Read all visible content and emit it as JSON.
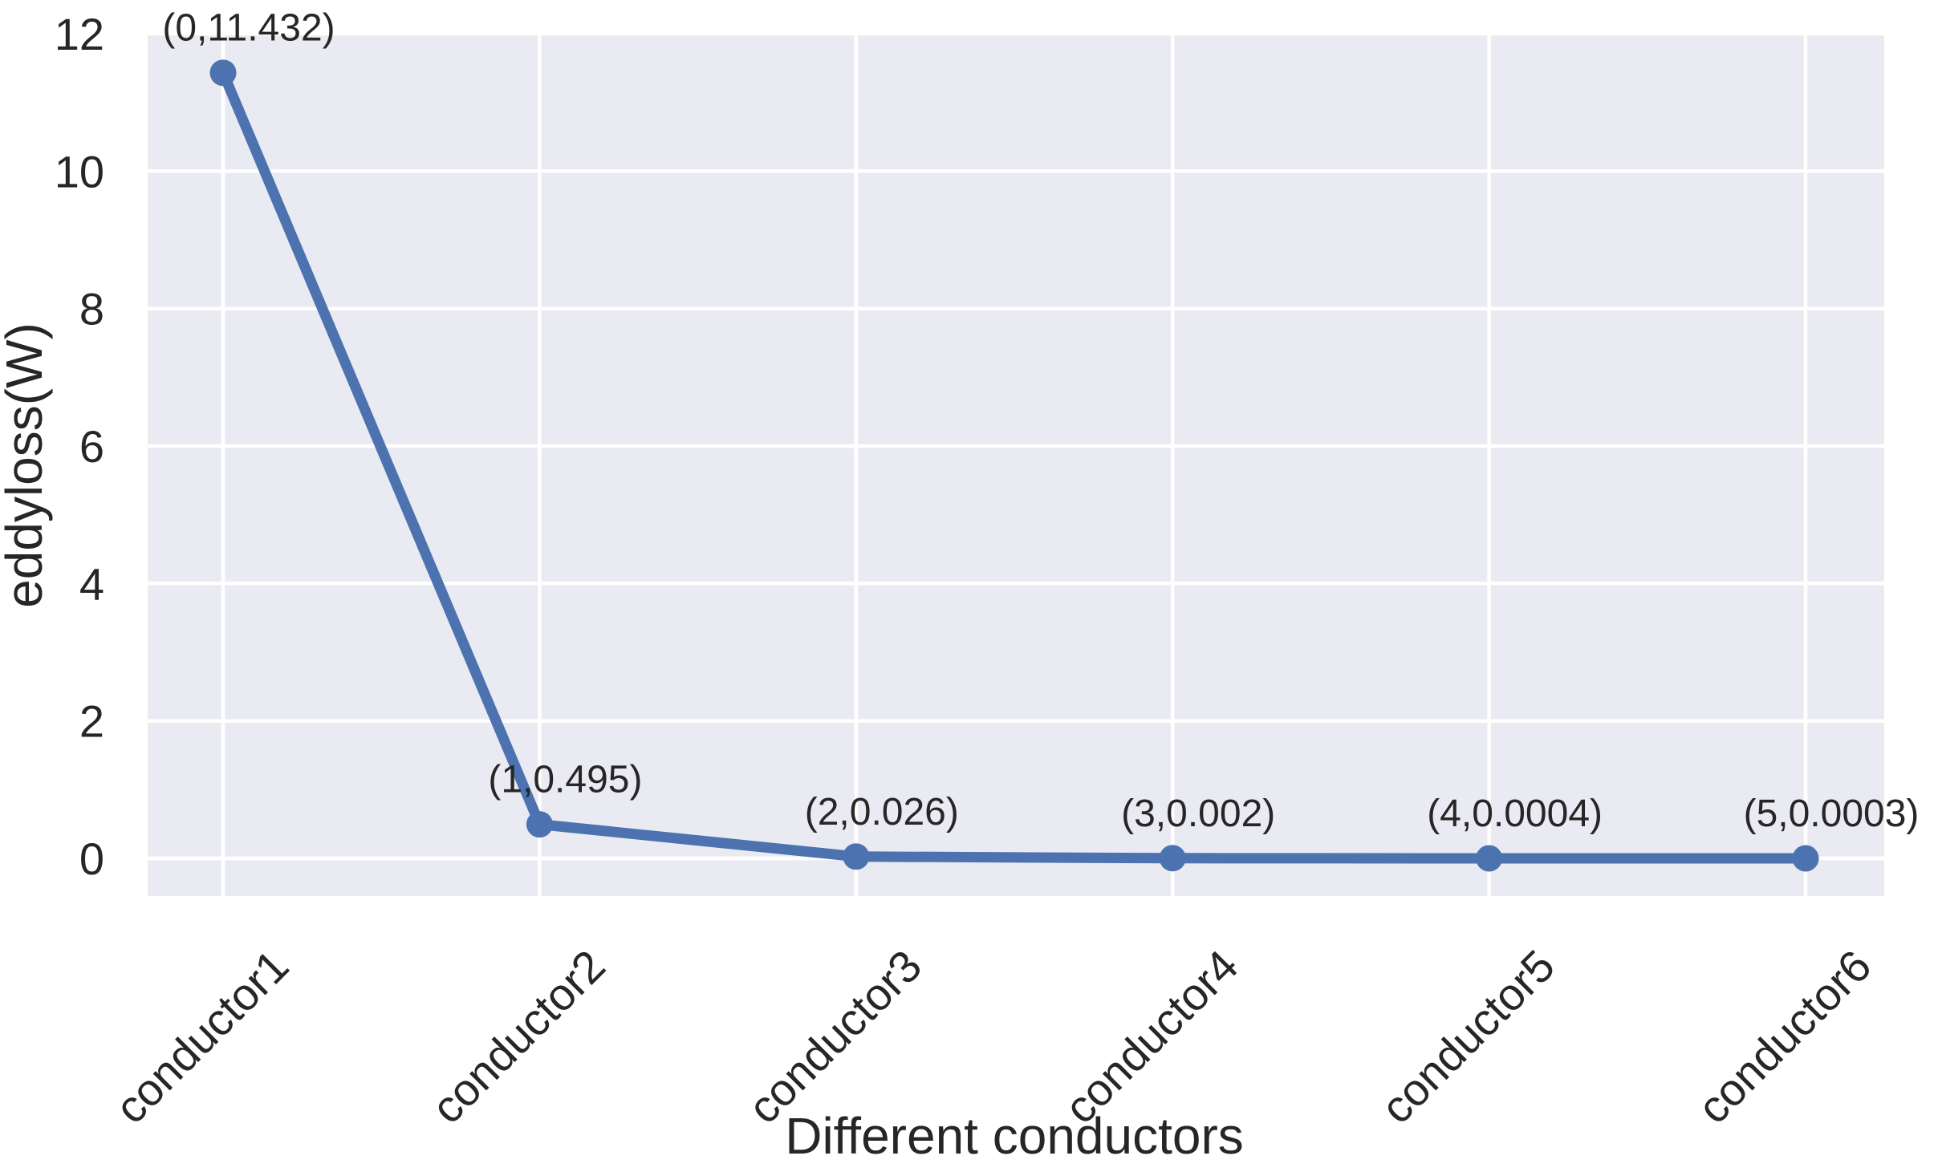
{
  "figure": {
    "colors": {
      "plot_background": "#eaeaf2",
      "grid": "#ffffff",
      "series_blue": "#4c72b0",
      "text": "#262626",
      "figure_background": "#ffffff"
    }
  },
  "chart_data": {
    "type": "line",
    "title": "",
    "xlabel": "Different conductors",
    "ylabel": "eddyloss(W)",
    "categories": [
      "conductor1",
      "conductor2",
      "conductor3",
      "conductor4",
      "conductor5",
      "conductor6"
    ],
    "x": [
      0,
      1,
      2,
      3,
      4,
      5
    ],
    "series": [
      {
        "name": "eddyloss",
        "values": [
          11.432,
          0.495,
          0.026,
          0.002,
          0.0004,
          0.0003
        ],
        "color": "#4c72b0",
        "marker": "circle"
      }
    ],
    "point_labels": [
      "(0,11.432)",
      "(1,0.495)",
      "(2,0.026)",
      "(3,0.002)",
      "(4,0.0004)",
      "(5,0.0003)"
    ],
    "yticks": [
      0,
      2,
      4,
      6,
      8,
      10,
      12
    ],
    "ylim": [
      -0.55,
      12.0
    ],
    "xlim": [
      -0.25,
      5.25
    ],
    "grid": true,
    "grid_style": "white-on-lavender",
    "legend": null,
    "xtick_rotation_deg": 45
  }
}
